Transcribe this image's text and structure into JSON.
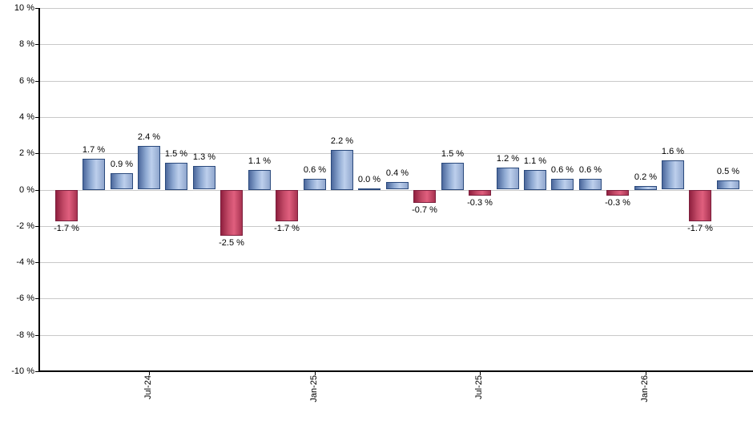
{
  "chart_data": {
    "type": "bar",
    "title": "",
    "xlabel": "",
    "ylabel": "",
    "ylim": [
      -10,
      10
    ],
    "y_tick_step": 2,
    "grid": true,
    "legend": false,
    "y_tick_labels": [
      "10 %",
      "8 %",
      "6 %",
      "4 %",
      "2 %",
      "0 %",
      "-2 %",
      "-4 %",
      "-6 %",
      "-8 %",
      "-10 %"
    ],
    "bars": [
      {
        "value": -1.7,
        "label": "-1.7 %"
      },
      {
        "value": 1.7,
        "label": "1.7 %"
      },
      {
        "value": 0.9,
        "label": "0.9 %"
      },
      {
        "value": 2.4,
        "label": "2.4 %"
      },
      {
        "value": 1.5,
        "label": "1.5 %"
      },
      {
        "value": 1.3,
        "label": "1.3 %"
      },
      {
        "value": -2.5,
        "label": "-2.5 %"
      },
      {
        "value": 1.1,
        "label": "1.1 %"
      },
      {
        "value": -1.7,
        "label": "-1.7 %"
      },
      {
        "value": 0.6,
        "label": "0.6 %"
      },
      {
        "value": 2.2,
        "label": "2.2 %"
      },
      {
        "value": 0.0,
        "label": "0.0 %"
      },
      {
        "value": 0.4,
        "label": "0.4 %"
      },
      {
        "value": -0.7,
        "label": "-0.7 %"
      },
      {
        "value": 1.5,
        "label": "1.5 %"
      },
      {
        "value": -0.3,
        "label": "-0.3 %"
      },
      {
        "value": 1.2,
        "label": "1.2 %"
      },
      {
        "value": 1.1,
        "label": "1.1 %"
      },
      {
        "value": 0.6,
        "label": "0.6 %"
      },
      {
        "value": 0.6,
        "label": "0.6 %"
      },
      {
        "value": -0.3,
        "label": "-0.3 %"
      },
      {
        "value": 0.2,
        "label": "0.2 %"
      },
      {
        "value": 1.6,
        "label": "1.6 %"
      },
      {
        "value": -1.7,
        "label": "-1.7 %"
      },
      {
        "value": 0.5,
        "label": "0.5 %"
      }
    ],
    "x_tick_marks": [
      {
        "bar_index": 3,
        "label": "Jul-24"
      },
      {
        "bar_index": 9,
        "label": "Jan-25"
      },
      {
        "bar_index": 15,
        "label": "Jul-25"
      },
      {
        "bar_index": 21,
        "label": "Jan-26"
      }
    ],
    "colors": {
      "positive_gradient": [
        "#4c689c",
        "#8ea9d2",
        "#bdcfec",
        "#8fa6cd"
      ],
      "positive_border": "#2b4a7d",
      "negative_gradient": [
        "#90203f",
        "#c34a67",
        "#e05f7e",
        "#a83351"
      ],
      "negative_border": "#7c1f3d",
      "gridline": "#c9c9c9",
      "axis": "#000000",
      "label_text": "#000000"
    }
  }
}
